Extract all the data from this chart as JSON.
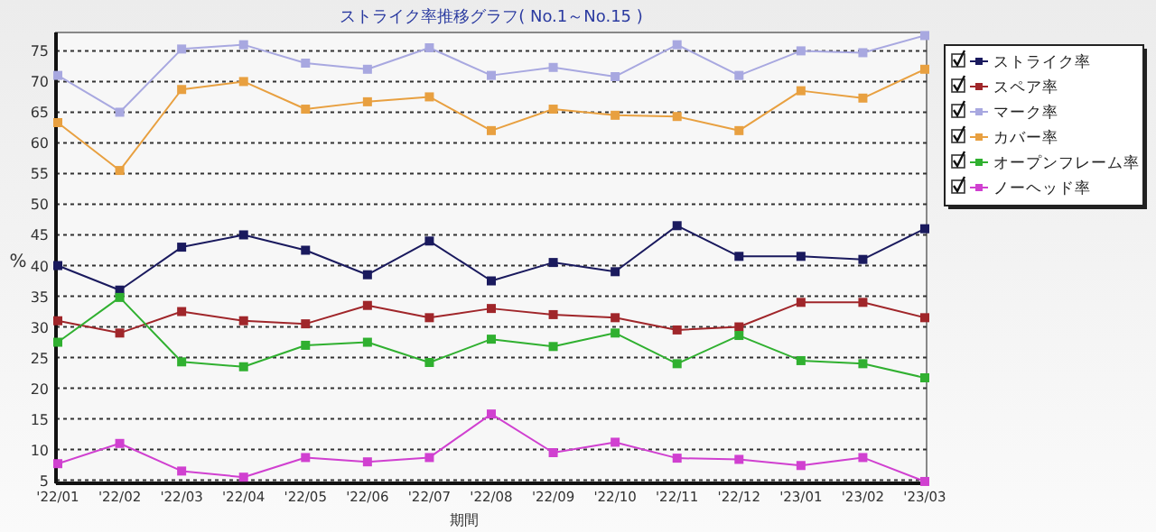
{
  "chart_data": {
    "type": "line",
    "title": "ストライク率推移グラフ( No.1～No.15 )",
    "xlabel": "期間",
    "ylabel": "%",
    "categories": [
      "'22/01",
      "'22/02",
      "'22/03",
      "'22/04",
      "'22/05",
      "'22/06",
      "'22/07",
      "'22/08",
      "'22/09",
      "'22/10",
      "'22/11",
      "'22/12",
      "'23/01",
      "'23/02",
      "'23/03"
    ],
    "series": [
      {
        "name": "ストライク率",
        "color": "#1a1a5e",
        "values": [
          40,
          36,
          43,
          45,
          42.5,
          38.5,
          44,
          37.5,
          40.5,
          39,
          46.5,
          41.5,
          41.5,
          41,
          46
        ]
      },
      {
        "name": "スペア率",
        "color": "#a0262a",
        "values": [
          31,
          29,
          32.5,
          31,
          30.5,
          33.5,
          31.5,
          33,
          32,
          31.5,
          29.5,
          30,
          34,
          34,
          31.5
        ]
      },
      {
        "name": "マーク率",
        "color": "#a8a8e0",
        "values": [
          71,
          65,
          75.3,
          76,
          73,
          72,
          75.5,
          71,
          72.3,
          70.8,
          76,
          71,
          75,
          74.7,
          77.5
        ]
      },
      {
        "name": "カバー率",
        "color": "#e8a040",
        "values": [
          63.3,
          55.5,
          68.7,
          70,
          65.5,
          66.7,
          67.5,
          62,
          65.5,
          64.5,
          64.3,
          62,
          68.5,
          67.3,
          72
        ]
      },
      {
        "name": "オープンフレーム率",
        "color": "#30b030",
        "values": [
          27.5,
          34.8,
          24.3,
          23.5,
          27,
          27.5,
          24.2,
          28,
          26.8,
          29,
          24,
          28.6,
          24.5,
          24,
          21.7
        ]
      },
      {
        "name": "ノーヘッド率",
        "color": "#d040d0",
        "values": [
          7.7,
          11,
          6.5,
          5.5,
          8.7,
          8,
          8.7,
          15.8,
          9.5,
          11.2,
          8.6,
          8.4,
          7.4,
          8.7,
          4.8
        ]
      }
    ],
    "ylim": [
      4.5,
      78
    ],
    "yticks": [
      5,
      10,
      15,
      20,
      25,
      30,
      35,
      40,
      45,
      50,
      55,
      60,
      65,
      70,
      75
    ],
    "grid": "y",
    "legend": "right",
    "marker": "square",
    "line_style": "solid"
  }
}
